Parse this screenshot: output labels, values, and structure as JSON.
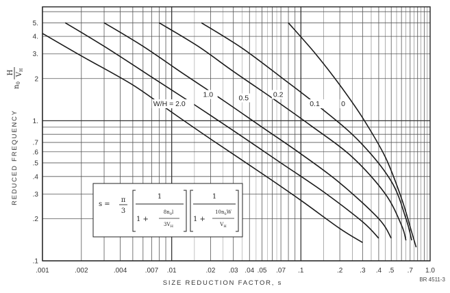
{
  "chart_data": {
    "type": "line",
    "title": "",
    "xlabel": "SIZE REDUCTION FACTOR, s",
    "ylabel": "REDUCED FREQUENCY",
    "ylabel_symbol": {
      "main": "n",
      "sub": "0",
      "frac_num": "H",
      "frac_den": "V",
      "frac_den_sub": "H"
    },
    "xscale": "log",
    "yscale": "log",
    "xlim": [
      0.001,
      1.0
    ],
    "ylim": [
      0.1,
      6.5
    ],
    "grid": true,
    "x_tick_labels": [
      {
        "v": 0.001,
        "t": ".001"
      },
      {
        "v": 0.002,
        "t": ".002"
      },
      {
        "v": 0.004,
        "t": ".004"
      },
      {
        "v": 0.007,
        "t": ".007"
      },
      {
        "v": 0.01,
        "t": ".01"
      },
      {
        "v": 0.02,
        "t": ".02"
      },
      {
        "v": 0.03,
        "t": ".03"
      },
      {
        "v": 0.04,
        "t": ".04"
      },
      {
        "v": 0.05,
        "t": ".05"
      },
      {
        "v": 0.07,
        "t": ".07"
      },
      {
        "v": 0.1,
        "t": ".1"
      },
      {
        "v": 0.2,
        "t": ".2"
      },
      {
        "v": 0.3,
        "t": ".3"
      },
      {
        "v": 0.4,
        "t": ".4"
      },
      {
        "v": 0.5,
        "t": ".5"
      },
      {
        "v": 0.7,
        "t": ".7"
      },
      {
        "v": 1.0,
        "t": "1.0"
      }
    ],
    "y_tick_labels": [
      {
        "v": 5,
        "t": "5."
      },
      {
        "v": 4,
        "t": "4."
      },
      {
        "v": 3,
        "t": "3."
      },
      {
        "v": 2,
        "t": "2"
      },
      {
        "v": 1,
        "t": "1."
      },
      {
        "v": 0.7,
        "t": ".7"
      },
      {
        "v": 0.6,
        "t": ".6"
      },
      {
        "v": 0.5,
        "t": ".5"
      },
      {
        "v": 0.4,
        "t": ".4"
      },
      {
        "v": 0.3,
        "t": ".3"
      },
      {
        "v": 0.2,
        "t": ".2"
      },
      {
        "v": 0.1,
        "t": ".1"
      }
    ],
    "series": [
      {
        "name": "W/H = 2.0",
        "points": [
          [
            0.001,
            4.2
          ],
          [
            0.002,
            2.9
          ],
          [
            0.005,
            1.8
          ],
          [
            0.01,
            1.15
          ],
          [
            0.02,
            0.74
          ],
          [
            0.05,
            0.42
          ],
          [
            0.1,
            0.27
          ],
          [
            0.2,
            0.17
          ],
          [
            0.3,
            0.135
          ]
        ]
      },
      {
        "name": "1.0",
        "points": [
          [
            0.0015,
            5.0
          ],
          [
            0.003,
            3.4
          ],
          [
            0.007,
            2.05
          ],
          [
            0.015,
            1.3
          ],
          [
            0.03,
            0.85
          ],
          [
            0.07,
            0.5
          ],
          [
            0.15,
            0.31
          ],
          [
            0.3,
            0.19
          ],
          [
            0.4,
            0.145
          ]
        ]
      },
      {
        "name": "0.5",
        "points": [
          [
            0.003,
            5.0
          ],
          [
            0.006,
            3.4
          ],
          [
            0.012,
            2.2
          ],
          [
            0.025,
            1.4
          ],
          [
            0.05,
            0.9
          ],
          [
            0.1,
            0.58
          ],
          [
            0.2,
            0.36
          ],
          [
            0.4,
            0.2
          ],
          [
            0.5,
            0.145
          ]
        ]
      },
      {
        "name": "0.2",
        "points": [
          [
            0.008,
            5.0
          ],
          [
            0.016,
            3.4
          ],
          [
            0.03,
            2.25
          ],
          [
            0.06,
            1.45
          ],
          [
            0.12,
            0.92
          ],
          [
            0.25,
            0.55
          ],
          [
            0.45,
            0.3
          ],
          [
            0.6,
            0.18
          ],
          [
            0.65,
            0.14
          ]
        ]
      },
      {
        "name": "0.1",
        "points": [
          [
            0.017,
            5.0
          ],
          [
            0.035,
            3.3
          ],
          [
            0.07,
            2.05
          ],
          [
            0.14,
            1.25
          ],
          [
            0.28,
            0.72
          ],
          [
            0.5,
            0.37
          ],
          [
            0.65,
            0.2
          ],
          [
            0.72,
            0.14
          ]
        ]
      },
      {
        "name": "0",
        "points": [
          [
            0.08,
            5.0
          ],
          [
            0.13,
            3.0
          ],
          [
            0.2,
            1.8
          ],
          [
            0.3,
            1.05
          ],
          [
            0.45,
            0.55
          ],
          [
            0.6,
            0.28
          ],
          [
            0.72,
            0.16
          ],
          [
            0.78,
            0.125
          ]
        ]
      }
    ],
    "curve_labels": [
      {
        "text": "W/H = 2.0",
        "x": 0.0072,
        "y": 1.27
      },
      {
        "text": "1.0",
        "x": 0.0175,
        "y": 1.48
      },
      {
        "text": "0.5",
        "x": 0.033,
        "y": 1.4
      },
      {
        "text": "0.2",
        "x": 0.061,
        "y": 1.48
      },
      {
        "text": "0.1",
        "x": 0.117,
        "y": 1.27
      },
      {
        "text": "0",
        "x": 0.205,
        "y": 1.27
      }
    ],
    "equation": {
      "lhs": "s =",
      "pi_num": "π",
      "pi_den": "3",
      "one": "1",
      "f1_num": "8n",
      "f1_num_sub": "0",
      "f1_num_tail": "l",
      "f1_den": "3V",
      "f1_den_sub": "H",
      "f2_num": "10n",
      "f2_num_sub": "0",
      "f2_num_tail": "W",
      "f2_den": "V",
      "f2_den_sub": "H",
      "plus": "1 +"
    },
    "figure_id": "BR 4511-3"
  }
}
